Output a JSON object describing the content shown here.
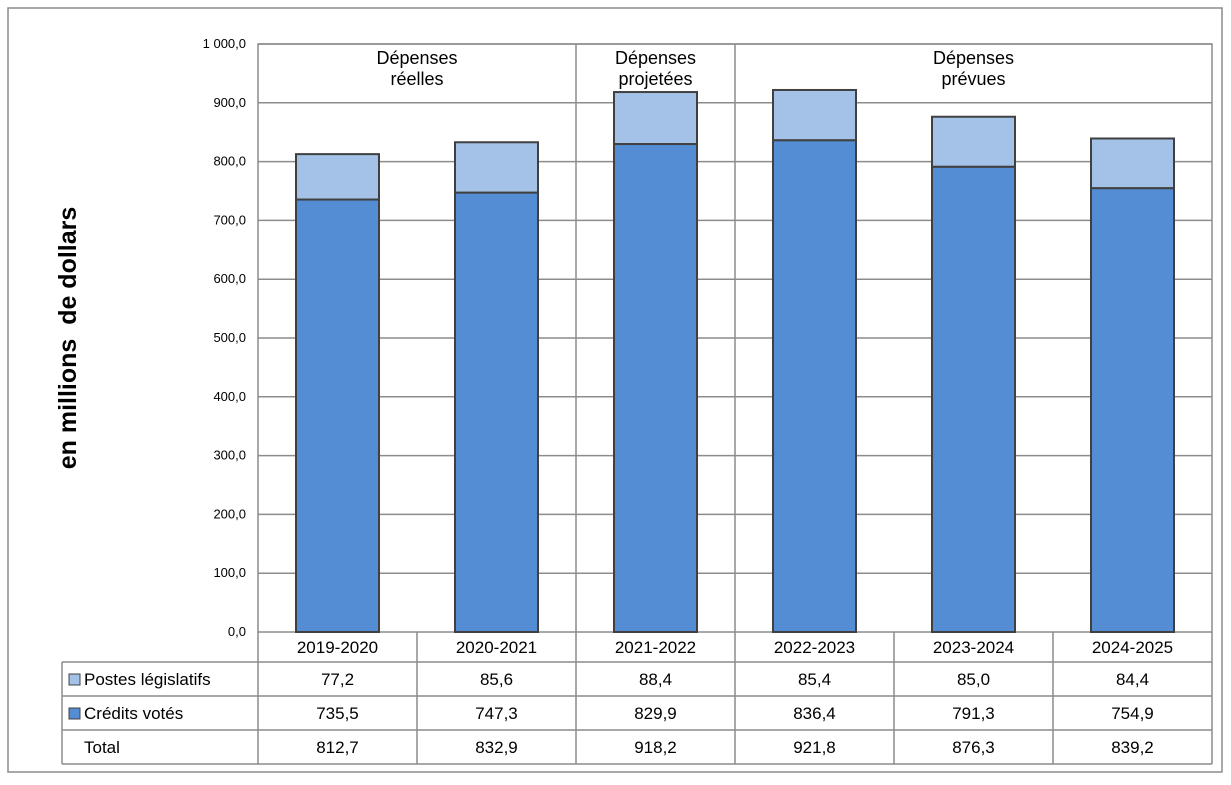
{
  "chart_data": {
    "type": "bar",
    "stacked": true,
    "ylabel": "en millions  de dollars",
    "ylim": [
      0,
      1000
    ],
    "y_ticks": [
      "0,0",
      "100,0",
      "200,0",
      "300,0",
      "400,0",
      "500,0",
      "600,0",
      "700,0",
      "800,0",
      "900,0",
      "1 000,0"
    ],
    "y_tick_values": [
      0,
      100,
      200,
      300,
      400,
      500,
      600,
      700,
      800,
      900,
      1000
    ],
    "grid": true,
    "categories": [
      "2019-2020",
      "2020-2021",
      "2021-2022",
      "2022-2023",
      "2023-2024",
      "2024-2025"
    ],
    "groups": [
      {
        "label_lines": [
          "Dépenses",
          "réelles"
        ],
        "start": 0,
        "end": 1
      },
      {
        "label_lines": [
          "Dépenses",
          "projetées"
        ],
        "start": 2,
        "end": 2
      },
      {
        "label_lines": [
          "Dépenses",
          "prévues"
        ],
        "start": 3,
        "end": 5
      }
    ],
    "series": [
      {
        "name": "Crédits votés",
        "values": [
          735.5,
          747.3,
          829.9,
          836.4,
          791.3,
          754.9
        ],
        "color": "#548dd4",
        "labels": [
          "735,5",
          "747,3",
          "829,9",
          "836,4",
          "791,3",
          "754,9"
        ]
      },
      {
        "name": "Postes législatifs",
        "values": [
          77.2,
          85.6,
          88.4,
          85.4,
          85.0,
          84.4
        ],
        "color": "#a4c1e8",
        "labels": [
          "77,2",
          "85,6",
          "88,4",
          "85,4",
          "85,0",
          "84,4"
        ]
      }
    ],
    "table": {
      "row_order": [
        "Postes législatifs",
        "Crédits votés",
        "Total"
      ],
      "total_label": "Total",
      "total_values": [
        "812,7",
        "832,9",
        "918,2",
        "921,8",
        "876,3",
        "839,2"
      ]
    }
  }
}
